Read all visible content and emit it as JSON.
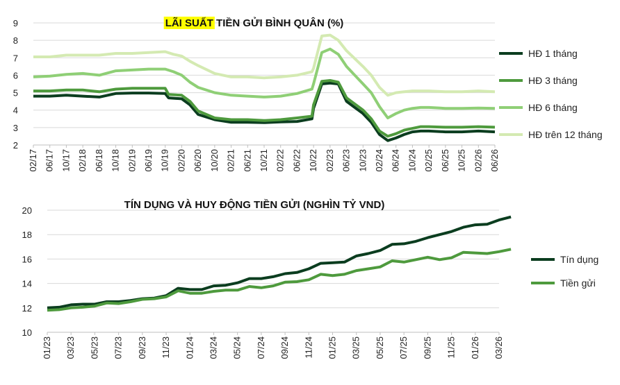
{
  "charts": [
    {
      "title_highlight": "LÃI SUẤT",
      "title_rest": " TIỀN GỬI BÌNH QUÂN (%)",
      "highlight_color": "#ffff00"
    },
    {
      "title": "TÍN DỤNG VÀ HUY ĐỘNG TIỀN GỬI (NGHÌN TỶ VND)"
    }
  ],
  "chart_data": [
    {
      "type": "line",
      "title": "LÃI SUẤT TIỀN GỬI BÌNH QUÂN (%)",
      "xlabel": "",
      "ylabel": "",
      "ylim": [
        2,
        9
      ],
      "yticks": [
        "2",
        "3",
        "4",
        "5",
        "6",
        "7",
        "8",
        "9"
      ],
      "categories": [
        "02/17",
        "06/17",
        "10/17",
        "02/18",
        "06/18",
        "10/18",
        "02/19",
        "06/19",
        "10/19",
        "02/20",
        "06/20",
        "10/20",
        "02/21",
        "06/21",
        "10/21",
        "02/22",
        "06/22",
        "10/22",
        "02/23",
        "06/23",
        "10/23",
        "02/24",
        "06/24",
        "10/24",
        "02/25",
        "06/25",
        "10/25",
        "02/26",
        "06/26"
      ],
      "grid": true,
      "legend": "right",
      "series": [
        {
          "name": "HĐ 1 tháng",
          "color": "#0b3d1f",
          "points": [
            [
              0,
              4.8
            ],
            [
              1,
              4.8
            ],
            [
              2,
              4.85
            ],
            [
              3,
              4.8
            ],
            [
              4,
              4.75
            ],
            [
              5,
              4.95
            ],
            [
              6,
              4.98
            ],
            [
              7,
              4.98
            ],
            [
              8,
              4.95
            ],
            [
              8.2,
              4.7
            ],
            [
              9,
              4.65
            ],
            [
              9.5,
              4.3
            ],
            [
              10,
              3.75
            ],
            [
              11,
              3.45
            ],
            [
              12,
              3.3
            ],
            [
              13,
              3.3
            ],
            [
              14,
              3.28
            ],
            [
              15,
              3.32
            ],
            [
              16,
              3.35
            ],
            [
              16.9,
              3.5
            ],
            [
              17,
              4.1
            ],
            [
              17.5,
              5.5
            ],
            [
              18,
              5.55
            ],
            [
              18.5,
              5.5
            ],
            [
              19,
              4.5
            ],
            [
              20,
              3.8
            ],
            [
              20.5,
              3.3
            ],
            [
              21,
              2.6
            ],
            [
              21.5,
              2.25
            ],
            [
              22,
              2.4
            ],
            [
              22.5,
              2.6
            ],
            [
              23,
              2.75
            ],
            [
              23.5,
              2.8
            ],
            [
              24,
              2.8
            ],
            [
              25,
              2.75
            ],
            [
              26,
              2.75
            ],
            [
              27,
              2.8
            ],
            [
              28,
              2.75
            ]
          ]
        },
        {
          "name": "HĐ 3 tháng",
          "color": "#4e9a3d",
          "points": [
            [
              0,
              5.1
            ],
            [
              1,
              5.1
            ],
            [
              2,
              5.15
            ],
            [
              3,
              5.15
            ],
            [
              4,
              5.05
            ],
            [
              5,
              5.2
            ],
            [
              6,
              5.25
            ],
            [
              7,
              5.25
            ],
            [
              8,
              5.25
            ],
            [
              8.2,
              4.9
            ],
            [
              9,
              4.85
            ],
            [
              9.5,
              4.5
            ],
            [
              10,
              3.95
            ],
            [
              11,
              3.55
            ],
            [
              12,
              3.45
            ],
            [
              13,
              3.45
            ],
            [
              14,
              3.4
            ],
            [
              15,
              3.45
            ],
            [
              16,
              3.55
            ],
            [
              16.9,
              3.65
            ],
            [
              17,
              4.3
            ],
            [
              17.5,
              5.65
            ],
            [
              18,
              5.7
            ],
            [
              18.5,
              5.6
            ],
            [
              19,
              4.7
            ],
            [
              20,
              4.0
            ],
            [
              20.5,
              3.5
            ],
            [
              21,
              2.8
            ],
            [
              21.5,
              2.5
            ],
            [
              22,
              2.65
            ],
            [
              22.5,
              2.85
            ],
            [
              23,
              2.95
            ],
            [
              23.5,
              3.05
            ],
            [
              24,
              3.05
            ],
            [
              25,
              3.02
            ],
            [
              26,
              3.02
            ],
            [
              27,
              3.05
            ],
            [
              28,
              3.02
            ]
          ]
        },
        {
          "name": "HĐ 6 tháng",
          "color": "#8fcf76",
          "points": [
            [
              0,
              5.9
            ],
            [
              1,
              5.95
            ],
            [
              2,
              6.05
            ],
            [
              3,
              6.1
            ],
            [
              4,
              6.0
            ],
            [
              5,
              6.25
            ],
            [
              6,
              6.3
            ],
            [
              7,
              6.35
            ],
            [
              8,
              6.35
            ],
            [
              8.5,
              6.2
            ],
            [
              9,
              6.0
            ],
            [
              9.5,
              5.6
            ],
            [
              10,
              5.3
            ],
            [
              11,
              5.0
            ],
            [
              12,
              4.85
            ],
            [
              13,
              4.8
            ],
            [
              14,
              4.75
            ],
            [
              15,
              4.8
            ],
            [
              16,
              4.95
            ],
            [
              16.9,
              5.2
            ],
            [
              17,
              5.5
            ],
            [
              17.5,
              7.3
            ],
            [
              18,
              7.5
            ],
            [
              18.5,
              7.2
            ],
            [
              19,
              6.5
            ],
            [
              20,
              5.5
            ],
            [
              20.5,
              5.0
            ],
            [
              21,
              4.2
            ],
            [
              21.5,
              3.55
            ],
            [
              22,
              3.8
            ],
            [
              22.5,
              4.0
            ],
            [
              23,
              4.1
            ],
            [
              23.5,
              4.15
            ],
            [
              24,
              4.15
            ],
            [
              25,
              4.1
            ],
            [
              26,
              4.1
            ],
            [
              27,
              4.12
            ],
            [
              28,
              4.1
            ]
          ]
        },
        {
          "name": "HĐ trên 12 tháng",
          "color": "#d4eab2",
          "points": [
            [
              0,
              7.05
            ],
            [
              1,
              7.05
            ],
            [
              2,
              7.15
            ],
            [
              3,
              7.15
            ],
            [
              4,
              7.15
            ],
            [
              5,
              7.25
            ],
            [
              6,
              7.25
            ],
            [
              7,
              7.3
            ],
            [
              8,
              7.35
            ],
            [
              8.5,
              7.2
            ],
            [
              9,
              7.1
            ],
            [
              9.5,
              6.8
            ],
            [
              10,
              6.55
            ],
            [
              11,
              6.1
            ],
            [
              12,
              5.9
            ],
            [
              13,
              5.9
            ],
            [
              14,
              5.85
            ],
            [
              15,
              5.9
            ],
            [
              16,
              6.0
            ],
            [
              16.9,
              6.2
            ],
            [
              17,
              6.4
            ],
            [
              17.5,
              8.25
            ],
            [
              18,
              8.3
            ],
            [
              18.5,
              8.0
            ],
            [
              19,
              7.4
            ],
            [
              20,
              6.5
            ],
            [
              20.5,
              6.0
            ],
            [
              21,
              5.3
            ],
            [
              21.5,
              4.85
            ],
            [
              22,
              5.0
            ],
            [
              22.5,
              5.05
            ],
            [
              23,
              5.1
            ],
            [
              23.5,
              5.1
            ],
            [
              24,
              5.1
            ],
            [
              25,
              5.05
            ],
            [
              26,
              5.05
            ],
            [
              27,
              5.1
            ],
            [
              28,
              5.05
            ]
          ]
        }
      ]
    },
    {
      "type": "line",
      "title": "TÍN DỤNG VÀ HUY ĐỘNG TIỀN GỬI (NGHÌN TỶ VND)",
      "xlabel": "",
      "ylabel": "",
      "ylim": [
        10,
        20
      ],
      "yticks": [
        "10",
        "12",
        "14",
        "16",
        "18",
        "20"
      ],
      "categories": [
        "01/23",
        "03/23",
        "05/23",
        "07/23",
        "09/23",
        "11/23",
        "01/24",
        "03/24",
        "05/24",
        "07/24",
        "09/24",
        "11/24",
        "01/25",
        "03/25",
        "05/25",
        "07/25",
        "09/25",
        "11/25",
        "01/26",
        "03/26"
      ],
      "grid": true,
      "legend": "right",
      "series": [
        {
          "name": "Tín dụng",
          "color": "#0b3d1f",
          "points": [
            [
              0,
              12.0
            ],
            [
              0.5,
              12.05
            ],
            [
              1,
              12.25
            ],
            [
              1.5,
              12.3
            ],
            [
              2,
              12.3
            ],
            [
              2.5,
              12.5
            ],
            [
              3,
              12.5
            ],
            [
              3.5,
              12.6
            ],
            [
              4,
              12.75
            ],
            [
              4.5,
              12.8
            ],
            [
              5,
              13.0
            ],
            [
              5.5,
              13.6
            ],
            [
              6,
              13.5
            ],
            [
              6.5,
              13.5
            ],
            [
              7,
              13.8
            ],
            [
              7.5,
              13.85
            ],
            [
              8,
              14.05
            ],
            [
              8.5,
              14.4
            ],
            [
              9,
              14.4
            ],
            [
              9.5,
              14.55
            ],
            [
              10,
              14.8
            ],
            [
              10.5,
              14.9
            ],
            [
              11,
              15.2
            ],
            [
              11.5,
              15.65
            ],
            [
              12,
              15.7
            ],
            [
              12.5,
              15.75
            ],
            [
              13,
              16.25
            ],
            [
              13.5,
              16.45
            ],
            [
              14,
              16.7
            ],
            [
              14.5,
              17.2
            ],
            [
              15,
              17.25
            ],
            [
              15.5,
              17.45
            ],
            [
              16,
              17.75
            ],
            [
              16.5,
              18.0
            ],
            [
              17,
              18.25
            ],
            [
              17.5,
              18.6
            ],
            [
              18,
              18.8
            ],
            [
              18.5,
              18.85
            ],
            [
              19,
              19.2
            ],
            [
              19.5,
              19.45
            ]
          ]
        },
        {
          "name": "Tiền gửi",
          "color": "#4e9a3d",
          "points": [
            [
              0,
              11.8
            ],
            [
              0.5,
              11.85
            ],
            [
              1,
              12.0
            ],
            [
              1.5,
              12.05
            ],
            [
              2,
              12.15
            ],
            [
              2.5,
              12.4
            ],
            [
              3,
              12.35
            ],
            [
              3.5,
              12.5
            ],
            [
              4,
              12.7
            ],
            [
              4.5,
              12.75
            ],
            [
              5,
              12.9
            ],
            [
              5.5,
              13.4
            ],
            [
              6,
              13.2
            ],
            [
              6.5,
              13.2
            ],
            [
              7,
              13.35
            ],
            [
              7.5,
              13.45
            ],
            [
              8,
              13.45
            ],
            [
              8.5,
              13.75
            ],
            [
              9,
              13.65
            ],
            [
              9.5,
              13.8
            ],
            [
              10,
              14.1
            ],
            [
              10.5,
              14.15
            ],
            [
              11,
              14.3
            ],
            [
              11.5,
              14.75
            ],
            [
              12,
              14.65
            ],
            [
              12.5,
              14.75
            ],
            [
              13,
              15.05
            ],
            [
              13.5,
              15.2
            ],
            [
              14,
              15.35
            ],
            [
              14.5,
              15.85
            ],
            [
              15,
              15.75
            ],
            [
              15.5,
              15.95
            ],
            [
              16,
              16.15
            ],
            [
              16.5,
              15.95
            ],
            [
              17,
              16.1
            ],
            [
              17.5,
              16.55
            ],
            [
              18,
              16.5
            ],
            [
              18.5,
              16.45
            ],
            [
              19,
              16.6
            ],
            [
              19.5,
              16.8
            ]
          ]
        }
      ]
    }
  ]
}
